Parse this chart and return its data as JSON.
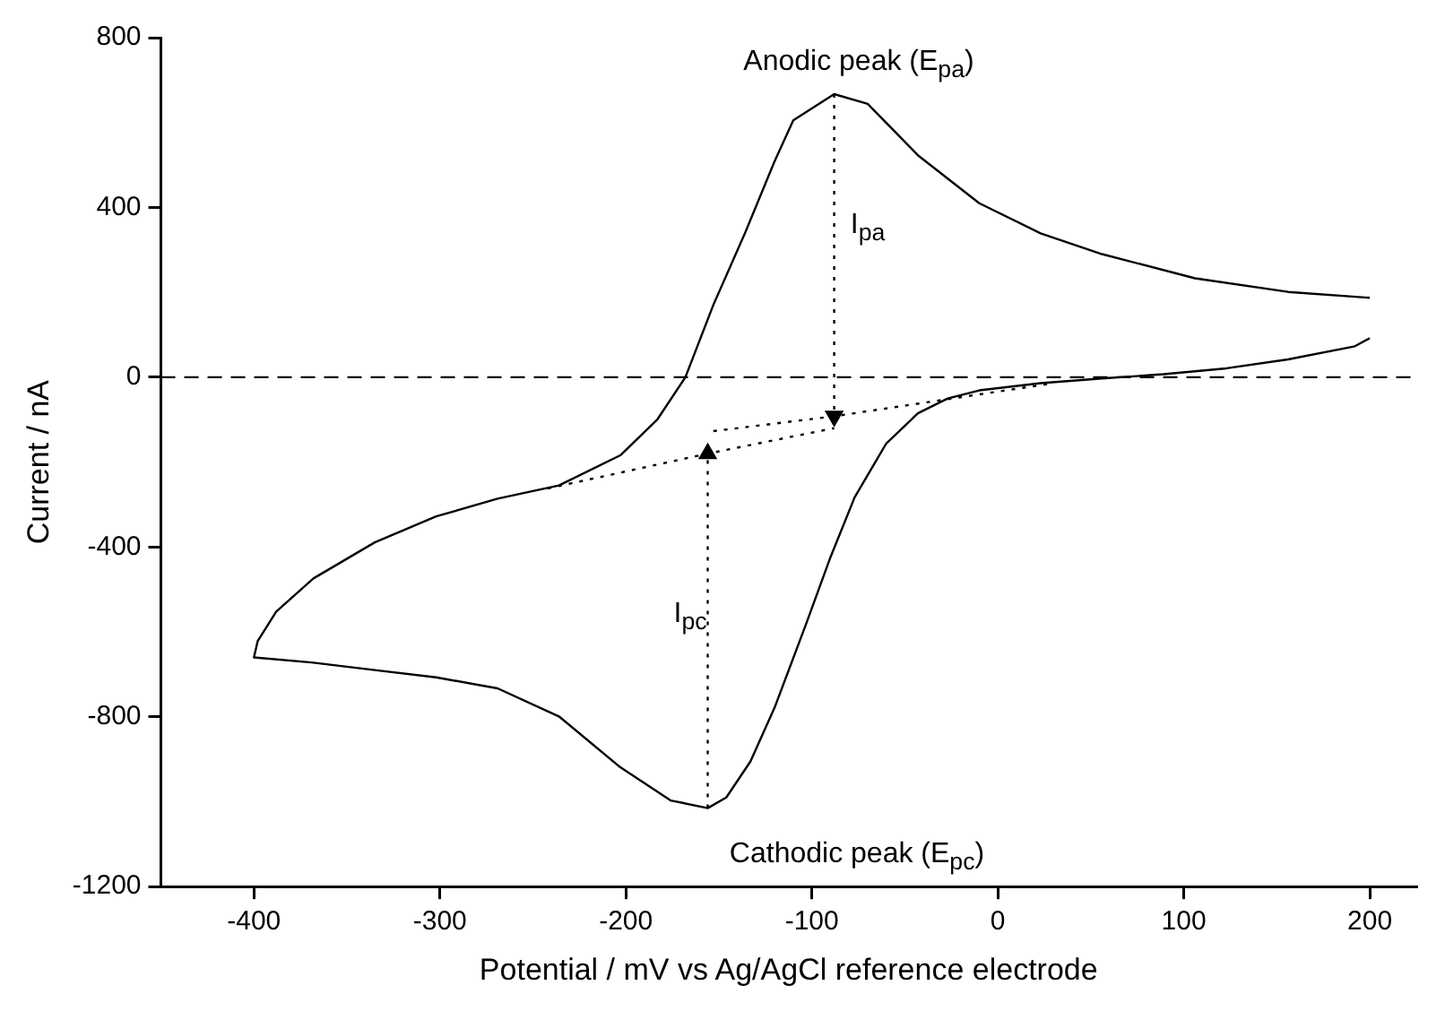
{
  "chart_data": {
    "type": "line",
    "xlabel": "Potential / mV vs Ag/AgCl reference electrode",
    "ylabel": "Current / nA",
    "xlim": [
      -450,
      225
    ],
    "xticks": [
      -400,
      -300,
      -200,
      -100,
      0,
      100,
      200
    ],
    "ylim": [
      -1200,
      800
    ],
    "yticks": [
      -1200,
      -800,
      -400,
      0,
      400,
      800
    ],
    "grid": false,
    "legend": false,
    "marker": "none",
    "ref_lines": [
      {
        "axis": "y",
        "value": 0,
        "line_style": "dashed",
        "color": "#000000"
      }
    ],
    "series": [
      {
        "color": "#000000",
        "line_style": "solid",
        "x": [
          200,
          192,
          156,
          123,
          89,
          56,
          23,
          -10,
          -27,
          -43,
          -60,
          -77,
          -90,
          -103,
          -120,
          -133,
          -146,
          -156,
          -176,
          -203,
          -236,
          -269,
          -302,
          -335,
          -369,
          -400,
          -398,
          -388,
          -368,
          -335,
          -302,
          -269,
          -236,
          -203,
          -183,
          -168,
          -153,
          -136,
          -120,
          -110,
          -88,
          -70,
          -43,
          -10,
          23,
          56,
          106,
          156,
          200
        ],
        "values": [
          92,
          73,
          42,
          21,
          7,
          -3,
          -14,
          -31,
          -50,
          -85,
          -156,
          -283,
          -424,
          -580,
          -778,
          -905,
          -990,
          -1015,
          -997,
          -919,
          -799,
          -733,
          -707,
          -690,
          -672,
          -660,
          -622,
          -552,
          -474,
          -389,
          -328,
          -286,
          -255,
          -184,
          -99,
          0,
          170,
          339,
          509,
          605,
          667,
          644,
          523,
          410,
          339,
          290,
          233,
          201,
          187
        ]
      },
      {
        "color": "#000000",
        "line_style": "dotted",
        "x": [
          -153,
          -88,
          30
        ],
        "values": [
          -127,
          -92,
          -14
        ]
      },
      {
        "color": "#000000",
        "line_style": "dotted",
        "x": [
          -242,
          -156,
          -88
        ],
        "values": [
          -262,
          -180,
          -120
        ]
      },
      {
        "color": "#000000",
        "line_style": "dotted",
        "x": [
          -88,
          -88
        ],
        "values": [
          667,
          -92
        ]
      },
      {
        "color": "#000000",
        "line_style": "dotted",
        "x": [
          -156,
          -156
        ],
        "values": [
          -1015,
          -180
        ]
      }
    ],
    "annotations": [
      "Anodic peak (E$_{pa}$)",
      "Cathodic peak (E$_{pc}$)",
      "I$_{pa}$",
      "I$_{pc}$"
    ]
  }
}
